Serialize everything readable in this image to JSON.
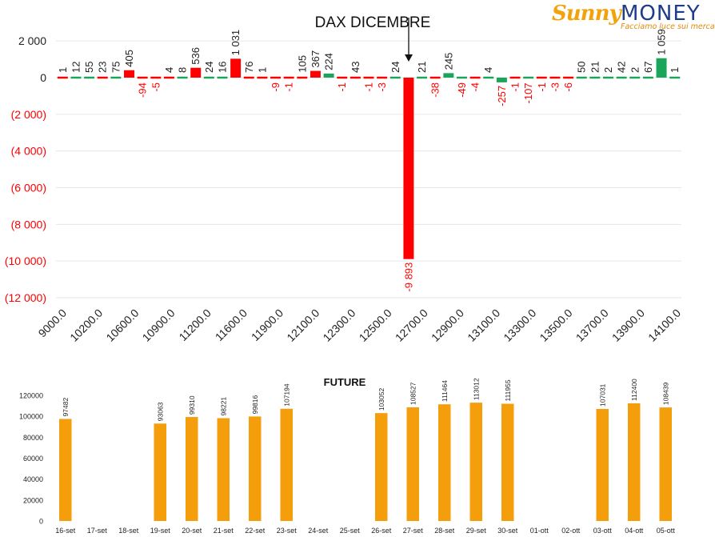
{
  "logo": {
    "brand_first": "Sunny",
    "brand_second": "MONEY",
    "tagline": "Facciamo luce sui mercati"
  },
  "colors": {
    "positive": "#1aa55a",
    "negative": "#ff0000",
    "negative_label": "#ff0000",
    "future_bar": "#f59e0b",
    "text": "#222222",
    "grid": "#e6e6e6"
  },
  "chart_data": [
    {
      "type": "bar",
      "title": "DAX DICEMBRE",
      "ylim": [
        -12000,
        2000
      ],
      "yticks": [
        2000,
        0,
        -2000,
        -4000,
        -6000,
        -8000,
        -10000,
        -12000
      ],
      "ytick_labels": [
        "2 000",
        "0",
        "(2 000)",
        "(4 000)",
        "(6 000)",
        "(8 000)",
        "(10 000)",
        "(12 000)"
      ],
      "xtick_labels": [
        "9000.0",
        "10200.0",
        "10600.0",
        "10900.0",
        "11200.0",
        "11600.0",
        "11900.0",
        "12100.0",
        "12300.0",
        "12500.0",
        "12700.0",
        "12900.0",
        "13100.0",
        "13300.0",
        "13500.0",
        "13700.0",
        "13900.0",
        "14100.0"
      ],
      "grid": true,
      "marker_strike": "12600.0",
      "series": [
        {
          "values": [
            1,
            null,
            null,
            23,
            null,
            null,
            null,
            4,
            null,
            536,
            null,
            1031,
            76,
            null,
            null,
            105,
            367,
            224,
            null,
            43,
            null,
            24,
            null,
            245,
            null,
            4,
            null,
            null,
            null,
            null,
            null,
            50,
            21,
            2,
            42,
            2,
            1059,
            1
          ],
          "labels": [
            "1",
            "",
            "",
            "23",
            "",
            "",
            "",
            "4",
            "",
            "536",
            "",
            "1 031",
            "76",
            "",
            "",
            "105",
            "367",
            "224",
            "",
            "43",
            "",
            "24",
            "",
            "245",
            "",
            "4",
            "",
            "",
            "",
            "",
            "",
            "50",
            "21",
            "2",
            "42",
            "2",
            "1 059",
            "1"
          ]
        }
      ],
      "bars": [
        {
          "v": 1,
          "c": "neg",
          "l": "1"
        },
        {
          "v": 12,
          "c": "pos",
          "l": "12"
        },
        {
          "v": 55,
          "c": "pos",
          "l": "55"
        },
        {
          "v": 23,
          "c": "neg",
          "l": "23"
        },
        {
          "v": 75,
          "c": "pos",
          "l": "75"
        },
        {
          "v": 405,
          "c": "neg",
          "l": "405"
        },
        {
          "v": -94,
          "c": "neg",
          "l": "-94"
        },
        {
          "v": -5,
          "c": "neg",
          "l": "-5"
        },
        {
          "v": 4,
          "c": "neg",
          "l": "4"
        },
        {
          "v": 8,
          "c": "pos",
          "l": "8"
        },
        {
          "v": 536,
          "c": "neg",
          "l": "536"
        },
        {
          "v": 24,
          "c": "pos",
          "l": "24"
        },
        {
          "v": 16,
          "c": "pos",
          "l": "16"
        },
        {
          "v": 1031,
          "c": "neg",
          "l": "1 031"
        },
        {
          "v": 76,
          "c": "neg",
          "l": "76"
        },
        {
          "v": 1,
          "c": "neg",
          "l": "1"
        },
        {
          "v": -9,
          "c": "neg",
          "l": "-9"
        },
        {
          "v": -1,
          "c": "neg",
          "l": "-1"
        },
        {
          "v": 105,
          "c": "neg",
          "l": "105"
        },
        {
          "v": 367,
          "c": "neg",
          "l": "367"
        },
        {
          "v": 224,
          "c": "pos",
          "l": "224"
        },
        {
          "v": -1,
          "c": "neg",
          "l": "-1"
        },
        {
          "v": 43,
          "c": "neg",
          "l": "43"
        },
        {
          "v": -1,
          "c": "neg",
          "l": "-1"
        },
        {
          "v": -3,
          "c": "neg",
          "l": "-3"
        },
        {
          "v": 24,
          "c": "pos",
          "l": "24"
        },
        {
          "v": -9893,
          "c": "neg",
          "l": "-9 893"
        },
        {
          "v": 21,
          "c": "pos",
          "l": "21"
        },
        {
          "v": -38,
          "c": "neg",
          "l": "-38"
        },
        {
          "v": 245,
          "c": "pos",
          "l": "245"
        },
        {
          "v": -49,
          "c": "pos",
          "l": "-49"
        },
        {
          "v": -4,
          "c": "neg",
          "l": "-4"
        },
        {
          "v": 4,
          "c": "pos",
          "l": "4"
        },
        {
          "v": -257,
          "c": "pos",
          "l": "-257"
        },
        {
          "v": -1,
          "c": "neg",
          "l": "-1"
        },
        {
          "v": -107,
          "c": "pos",
          "l": "-107"
        },
        {
          "v": -1,
          "c": "neg",
          "l": "-1"
        },
        {
          "v": -3,
          "c": "neg",
          "l": "-3"
        },
        {
          "v": -6,
          "c": "neg",
          "l": "-6"
        },
        {
          "v": 50,
          "c": "pos",
          "l": "50"
        },
        {
          "v": 21,
          "c": "pos",
          "l": "21"
        },
        {
          "v": 2,
          "c": "pos",
          "l": "2"
        },
        {
          "v": 42,
          "c": "pos",
          "l": "42"
        },
        {
          "v": 2,
          "c": "pos",
          "l": "2"
        },
        {
          "v": 67,
          "c": "pos",
          "l": "67"
        },
        {
          "v": 1059,
          "c": "pos",
          "l": "1 059"
        },
        {
          "v": 1,
          "c": "pos",
          "l": "1"
        }
      ]
    },
    {
      "type": "bar",
      "title": "FUTURE",
      "ylim": [
        0,
        120000
      ],
      "yticks": [
        0,
        20000,
        40000,
        60000,
        80000,
        100000,
        120000
      ],
      "ytick_labels": [
        "0",
        "20000",
        "40000",
        "60000",
        "80000",
        "100000",
        "120000"
      ],
      "grid": false,
      "categories": [
        "16-set",
        "17-set",
        "18-set",
        "19-set",
        "20-set",
        "21-set",
        "22-set",
        "23-set",
        "24-set",
        "25-set",
        "26-set",
        "27-set",
        "28-set",
        "29-set",
        "30-set",
        "01-ott",
        "02-ott",
        "03-ott",
        "04-ott",
        "05-ott"
      ],
      "values": [
        97482,
        null,
        null,
        93063,
        99310,
        98221,
        99816,
        107194,
        null,
        null,
        103052,
        108527,
        111464,
        113012,
        111955,
        null,
        null,
        107031,
        112400,
        108439
      ],
      "labels": [
        "97482",
        "",
        "",
        "93063",
        "99310",
        "98221",
        "99816",
        "107194",
        "",
        "",
        "103052",
        "108527",
        "111464",
        "113012",
        "111955",
        "",
        "",
        "107031",
        "112400",
        "108439"
      ]
    }
  ]
}
